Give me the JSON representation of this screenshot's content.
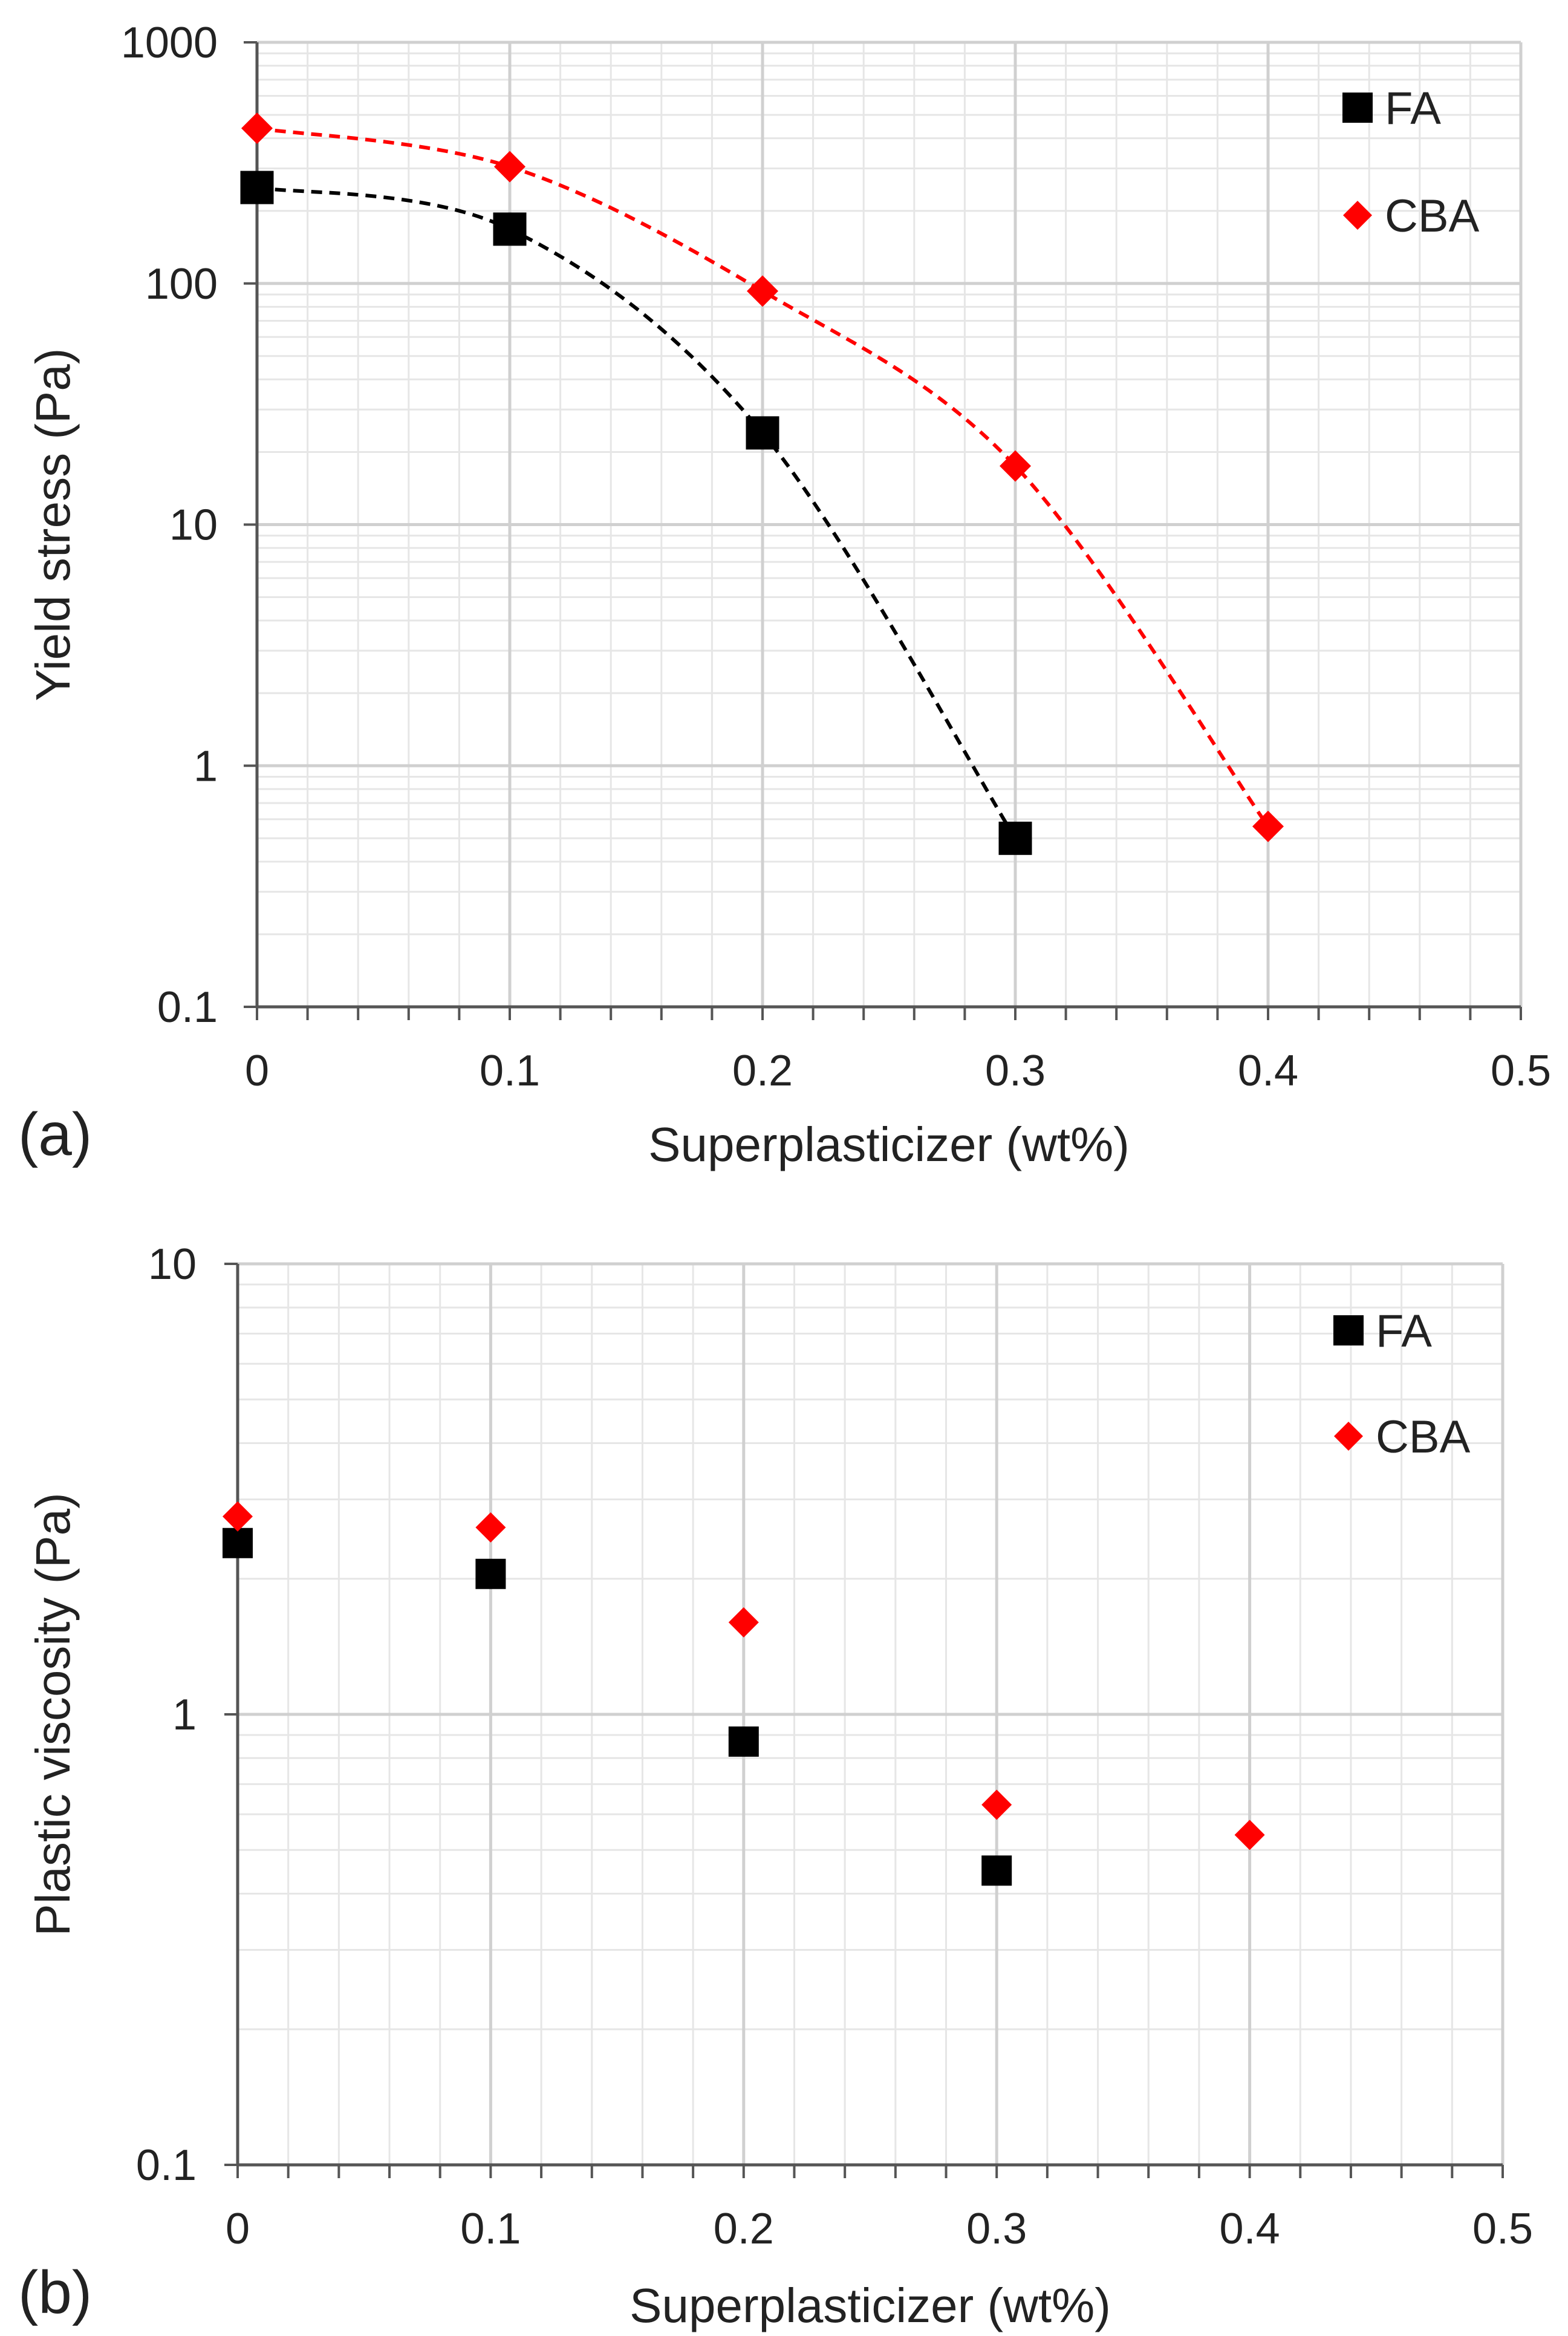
{
  "chart_data": [
    {
      "type": "line",
      "panel_label": "(a)",
      "title": "",
      "xlabel": "Superplasticizer (wt%)",
      "ylabel": "Yield stress (Pa)",
      "xscale": "linear",
      "yscale": "log",
      "xlim": [
        0,
        0.5
      ],
      "ylim": [
        0.1,
        1000
      ],
      "x_ticks": [
        0,
        0.1,
        0.2,
        0.3,
        0.4,
        0.5
      ],
      "x_tick_labels": [
        "0",
        "0.1",
        "0.2",
        "0.3",
        "0.4",
        "0.5"
      ],
      "y_ticks": [
        0.1,
        1,
        10,
        100,
        1000
      ],
      "y_tick_labels": [
        "0.1",
        "1",
        "10",
        "100",
        "1000"
      ],
      "grid": true,
      "legend_position": "top-right",
      "series": [
        {
          "name": "FA",
          "marker": "square",
          "color": "#000000",
          "trend_line": "dashed",
          "x": [
            0,
            0.1,
            0.2,
            0.3
          ],
          "values": [
            250,
            168,
            24,
            0.5
          ]
        },
        {
          "name": "CBA",
          "marker": "diamond",
          "color": "#ff0000",
          "trend_line": "dashed",
          "x": [
            0,
            0.1,
            0.2,
            0.3,
            0.4
          ],
          "values": [
            440,
            305,
            93,
            17.5,
            0.56
          ]
        }
      ]
    },
    {
      "type": "scatter",
      "panel_label": "(b)",
      "title": "",
      "xlabel": "Superplasticizer (wt%)",
      "ylabel": "Plastic viscosity (Pa)",
      "xscale": "linear",
      "yscale": "log",
      "xlim": [
        0,
        0.5
      ],
      "ylim": [
        0.1,
        10
      ],
      "x_ticks": [
        0,
        0.1,
        0.2,
        0.3,
        0.4,
        0.5
      ],
      "x_tick_labels": [
        "0",
        "0.1",
        "0.2",
        "0.3",
        "0.4",
        "0.5"
      ],
      "y_ticks": [
        0.1,
        1,
        10
      ],
      "y_tick_labels": [
        "0.1",
        "1",
        "10"
      ],
      "grid": true,
      "legend_position": "top-right",
      "series": [
        {
          "name": "FA",
          "marker": "square",
          "color": "#000000",
          "x": [
            0,
            0.1,
            0.2,
            0.3
          ],
          "values": [
            2.4,
            2.05,
            0.87,
            0.45
          ]
        },
        {
          "name": "CBA",
          "marker": "diamond",
          "color": "#ff0000",
          "x": [
            0,
            0.1,
            0.2,
            0.3,
            0.4
          ],
          "values": [
            2.75,
            2.6,
            1.6,
            0.63,
            0.54
          ]
        }
      ]
    }
  ]
}
